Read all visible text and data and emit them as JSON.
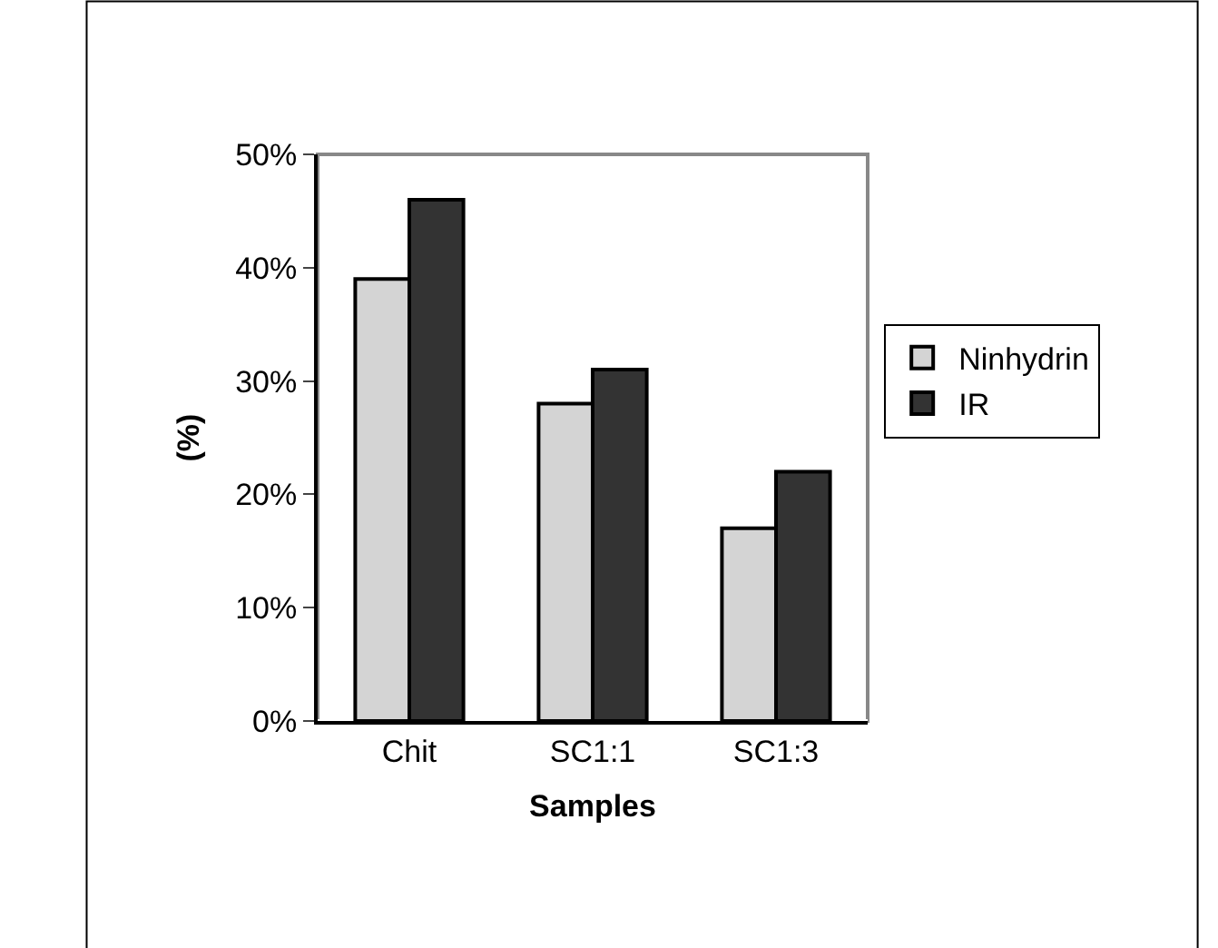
{
  "chart_data": {
    "type": "bar",
    "xlabel": "Samples",
    "ylabel": "(%)",
    "categories": [
      "Chit",
      "SC1:1",
      "SC1:3"
    ],
    "series": [
      {
        "name": "Ninhydrin",
        "color": "#d4d4d4",
        "values": [
          39,
          28,
          17
        ]
      },
      {
        "name": "IR",
        "color": "#333333",
        "values": [
          46,
          31,
          22
        ]
      }
    ],
    "ylim": [
      0,
      50
    ],
    "yticks": [
      {
        "value": 0,
        "label": "0%"
      },
      {
        "value": 10,
        "label": "10%"
      },
      {
        "value": 20,
        "label": "20%"
      },
      {
        "value": 30,
        "label": "30%"
      },
      {
        "value": 40,
        "label": "40%"
      },
      {
        "value": 50,
        "label": "50%"
      }
    ],
    "grid": false,
    "legend": "right"
  }
}
